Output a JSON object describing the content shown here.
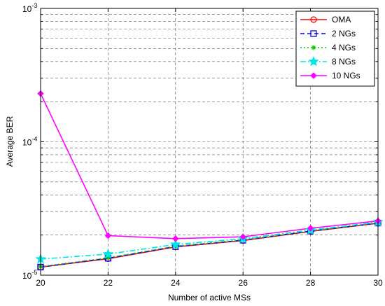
{
  "chart_data": {
    "type": "line",
    "title": "",
    "xlabel": "Number of active MSs",
    "ylabel": "Average BER",
    "xlim": [
      20,
      30
    ],
    "ylim": [
      1e-05,
      0.001
    ],
    "yscale": "log",
    "grid": true,
    "legend_position": "top-right",
    "x_ticks": [
      20,
      22,
      24,
      26,
      28,
      30
    ],
    "x_tick_labels": [
      "20",
      "22",
      "24",
      "26",
      "28",
      "30"
    ],
    "y_ticks": [
      {
        "base": "10",
        "exp": "-5",
        "value": 1e-05
      },
      {
        "base": "10",
        "exp": "-4",
        "value": 0.0001
      },
      {
        "base": "10",
        "exp": "-3",
        "value": 0.001
      }
    ],
    "x": [
      20,
      22,
      24,
      26,
      28,
      30
    ],
    "series": [
      {
        "name": "OMA",
        "values": [
          1.15e-05,
          1.33e-05,
          1.63e-05,
          1.82e-05,
          2.13e-05,
          2.45e-05
        ],
        "color": "#ff0000",
        "dash": "solid",
        "marker": "circle"
      },
      {
        "name": "2 NGs",
        "values": [
          1.15e-05,
          1.34e-05,
          1.64e-05,
          1.83e-05,
          2.14e-05,
          2.46e-05
        ],
        "color": "#0000ff",
        "dash": "dashed",
        "marker": "square"
      },
      {
        "name": "4 NGs",
        "values": [
          1.16e-05,
          1.35e-05,
          1.65e-05,
          1.84e-05,
          2.15e-05,
          2.47e-05
        ],
        "color": "#00cc00",
        "dash": "dotted",
        "marker": "asterisk"
      },
      {
        "name": "8 NGs",
        "values": [
          1.32e-05,
          1.44e-05,
          1.7e-05,
          1.88e-05,
          2.18e-05,
          2.5e-05
        ],
        "color": "#00e5e5",
        "dash": "dashdot",
        "marker": "star"
      },
      {
        "name": "10 NGs",
        "values": [
          0.00023,
          1.98e-05,
          1.88e-05,
          1.94e-05,
          2.25e-05,
          2.55e-05
        ],
        "color": "#ff00ff",
        "dash": "solid",
        "marker": "diamond"
      }
    ]
  }
}
